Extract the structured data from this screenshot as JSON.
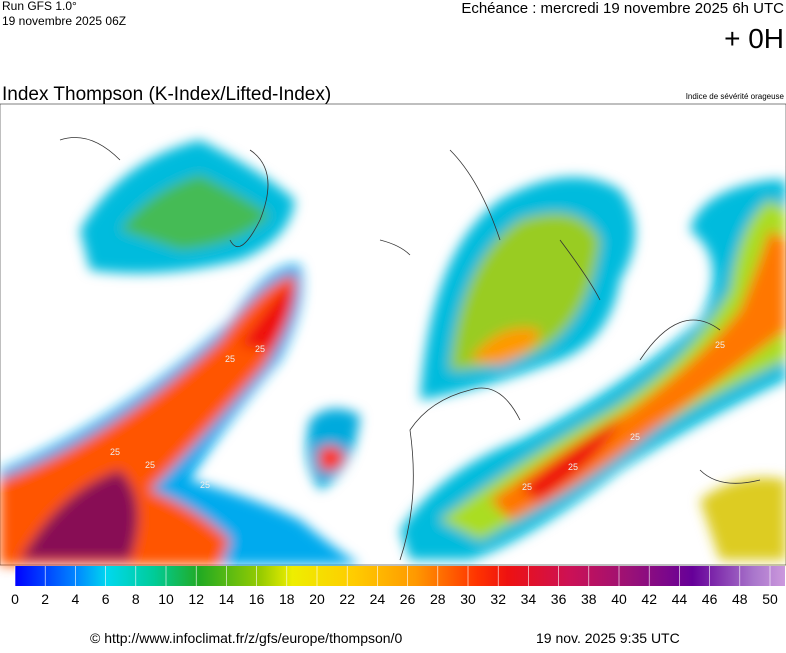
{
  "header": {
    "run": "Run GFS 1.0°",
    "run_date": "19 novembre 2025 06Z",
    "forecast": "Echéance : mercredi 19 novembre 2025 6h UTC",
    "lead": "+ 0H"
  },
  "title": "Index Thompson (K-Index/Lifted-Index)",
  "subtitle": "Indice de sévérité orageuse",
  "map": {
    "contour_labels": [
      "25",
      "25",
      "25",
      "25",
      "25",
      "25",
      "25",
      "25",
      "25"
    ]
  },
  "legend": {
    "ticks": [
      0,
      2,
      4,
      6,
      8,
      10,
      12,
      14,
      16,
      18,
      20,
      22,
      24,
      26,
      28,
      30,
      32,
      34,
      36,
      38,
      40,
      42,
      44,
      46,
      48,
      50
    ]
  },
  "footer": {
    "source": "© http://www.infoclimat.fr/z/gfs/europe/thompson/0",
    "generated": "19 nov. 2025  9:35 UTC"
  }
}
